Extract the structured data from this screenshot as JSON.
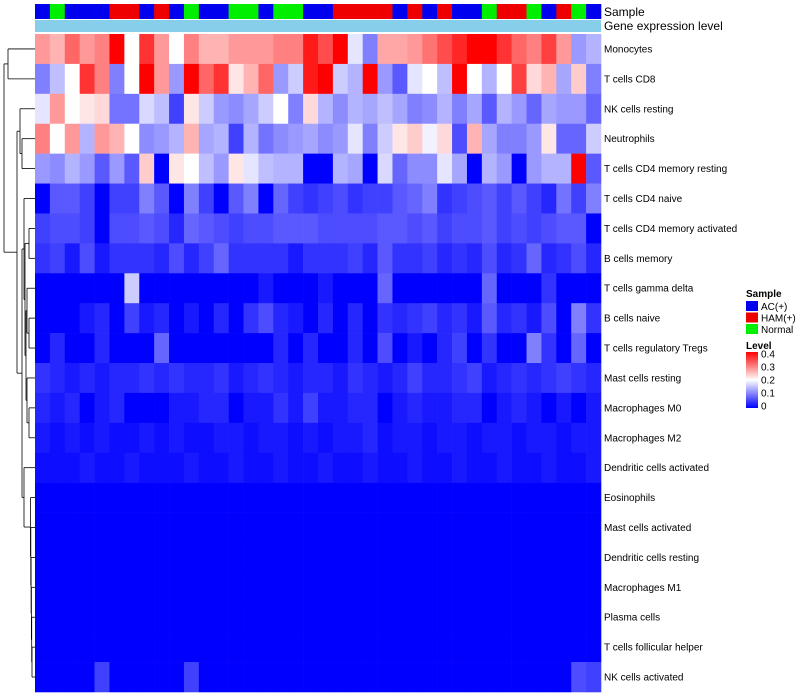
{
  "chart_data": {
    "type": "heatmap",
    "title": "",
    "annotation_labels": {
      "sample": "Sample",
      "expression": "Gene expression level"
    },
    "legend": {
      "sample_title": "Sample",
      "sample_categories": [
        {
          "name": "AC(+)",
          "color": "#0000EE"
        },
        {
          "name": "HAM(+)",
          "color": "#EE0000"
        },
        {
          "name": "Normal",
          "color": "#00EE00"
        }
      ],
      "level_title": "Level",
      "level_ticks": [
        "0.4",
        "0.3",
        "0.2",
        "0.1",
        "0"
      ],
      "level_range": [
        0,
        0.4
      ]
    },
    "sample_groups": [
      "AC(+)",
      "Normal",
      "AC(+)",
      "AC(+)",
      "AC(+)",
      "HAM(+)",
      "HAM(+)",
      "AC(+)",
      "HAM(+)",
      "AC(+)",
      "Normal",
      "AC(+)",
      "AC(+)",
      "Normal",
      "Normal",
      "AC(+)",
      "Normal",
      "Normal",
      "AC(+)",
      "AC(+)",
      "HAM(+)",
      "HAM(+)",
      "HAM(+)",
      "HAM(+)",
      "AC(+)",
      "HAM(+)",
      "AC(+)",
      "HAM(+)",
      "AC(+)",
      "AC(+)",
      "Normal",
      "HAM(+)",
      "HAM(+)",
      "Normal",
      "AC(+)",
      "HAM(+)",
      "Normal",
      "AC(+)"
    ],
    "rows": [
      "Monocytes",
      "T cells CD8",
      "NK cells resting",
      "Neutrophils",
      "T cells CD4 memory resting",
      "T cells CD4 naive",
      "T cells CD4 memory activated",
      "B cells memory",
      "T cells gamma delta",
      "B cells naive",
      "T cells regulatory  Tregs",
      "Mast cells resting",
      "Macrophages M0",
      "Macrophages M2",
      "Dendritic cells activated",
      "Eosinophils",
      "Mast cells activated",
      "Dendritic cells resting",
      "Macrophages M1",
      "Plasma cells",
      "T cells follicular helper",
      "NK cells activated"
    ],
    "values": [
      [
        0.28,
        0.26,
        0.32,
        0.28,
        0.3,
        0.4,
        0.2,
        0.36,
        0.28,
        0.2,
        0.3,
        0.26,
        0.26,
        0.28,
        0.28,
        0.28,
        0.3,
        0.3,
        0.38,
        0.34,
        0.4,
        0.18,
        0.1,
        0.27,
        0.27,
        0.28,
        0.31,
        0.34,
        0.37,
        0.42,
        0.42,
        0.36,
        0.32,
        0.3,
        0.35,
        0.28,
        0.12,
        0.14
      ],
      [
        0.1,
        0.15,
        0.2,
        0.36,
        0.3,
        0.1,
        0.2,
        0.4,
        0.28,
        0.12,
        0.4,
        0.32,
        0.36,
        0.22,
        0.26,
        0.32,
        0.12,
        0.16,
        0.38,
        0.4,
        0.16,
        0.14,
        0.4,
        0.12,
        0.07,
        0.18,
        0.2,
        0.15,
        0.4,
        0.2,
        0.14,
        0.2,
        0.35,
        0.23,
        0.26,
        0.13,
        0.24,
        0.1
      ],
      [
        0.18,
        0.28,
        0.2,
        0.22,
        0.23,
        0.09,
        0.09,
        0.17,
        0.15,
        0.05,
        0.22,
        0.16,
        0.12,
        0.11,
        0.13,
        0.16,
        0.2,
        0.1,
        0.23,
        0.14,
        0.11,
        0.14,
        0.13,
        0.15,
        0.13,
        0.1,
        0.11,
        0.14,
        0.1,
        0.13,
        0.07,
        0.14,
        0.12,
        0.08,
        0.13,
        0.12,
        0.12,
        0.08
      ],
      [
        0.3,
        0.2,
        0.28,
        0.14,
        0.28,
        0.26,
        0.2,
        0.11,
        0.12,
        0.14,
        0.26,
        0.13,
        0.14,
        0.05,
        0.14,
        0.09,
        0.11,
        0.12,
        0.13,
        0.11,
        0.12,
        0.18,
        0.1,
        0.16,
        0.22,
        0.24,
        0.19,
        0.23,
        0.06,
        0.26,
        0.13,
        0.1,
        0.1,
        0.12,
        0.22,
        0.08,
        0.08,
        0.16
      ],
      [
        0.12,
        0.11,
        0.14,
        0.12,
        0.07,
        0.12,
        0.07,
        0.24,
        0.0,
        0.22,
        0.2,
        0.15,
        0.12,
        0.22,
        0.18,
        0.15,
        0.14,
        0.14,
        0.0,
        0.0,
        0.14,
        0.13,
        0.0,
        0.17,
        0.08,
        0.11,
        0.11,
        0.18,
        0.13,
        0.0,
        0.14,
        0.12,
        0.0,
        0.12,
        0.14,
        0.14,
        0.4,
        0.07
      ],
      [
        0.0,
        0.07,
        0.07,
        0.05,
        0.0,
        0.05,
        0.05,
        0.1,
        0.07,
        0.0,
        0.1,
        0.05,
        0.0,
        0.07,
        0.1,
        0.0,
        0.08,
        0.05,
        0.04,
        0.05,
        0.06,
        0.04,
        0.05,
        0.05,
        0.07,
        0.08,
        0.1,
        0.04,
        0.05,
        0.06,
        0.07,
        0.05,
        0.07,
        0.05,
        0.03,
        0.09,
        0.05,
        0.1
      ],
      [
        0.05,
        0.06,
        0.06,
        0.05,
        0.0,
        0.06,
        0.06,
        0.07,
        0.06,
        0.03,
        0.08,
        0.07,
        0.06,
        0.05,
        0.06,
        0.06,
        0.07,
        0.07,
        0.07,
        0.06,
        0.06,
        0.06,
        0.06,
        0.07,
        0.07,
        0.06,
        0.07,
        0.05,
        0.06,
        0.06,
        0.07,
        0.05,
        0.06,
        0.05,
        0.06,
        0.07,
        0.07,
        0.0
      ],
      [
        0.04,
        0.05,
        0.02,
        0.06,
        0.02,
        0.04,
        0.04,
        0.04,
        0.03,
        0.06,
        0.03,
        0.05,
        0.08,
        0.04,
        0.04,
        0.04,
        0.04,
        0.02,
        0.04,
        0.04,
        0.04,
        0.05,
        0.03,
        0.07,
        0.04,
        0.04,
        0.05,
        0.03,
        0.04,
        0.03,
        0.06,
        0.03,
        0.04,
        0.08,
        0.03,
        0.04,
        0.06,
        0.03
      ],
      [
        0.0,
        0.0,
        0.0,
        0.0,
        0.0,
        0.0,
        0.16,
        0.0,
        0.0,
        0.0,
        0.0,
        0.0,
        0.0,
        0.0,
        0.0,
        0.02,
        0.0,
        0.0,
        0.0,
        0.02,
        0.0,
        0.0,
        0.0,
        0.08,
        0.0,
        0.0,
        0.0,
        0.0,
        0.0,
        0.0,
        0.08,
        0.0,
        0.0,
        0.0,
        0.04,
        0.0,
        0.0,
        0.0
      ],
      [
        0.0,
        0.0,
        0.0,
        0.02,
        0.03,
        0.0,
        0.05,
        0.02,
        0.03,
        0.0,
        0.02,
        0.0,
        0.03,
        0.0,
        0.04,
        0.06,
        0.03,
        0.02,
        0.0,
        0.03,
        0.0,
        0.03,
        0.0,
        0.04,
        0.03,
        0.04,
        0.05,
        0.03,
        0.04,
        0.02,
        0.07,
        0.03,
        0.04,
        0.02,
        0.06,
        0.0,
        0.1,
        0.04
      ],
      [
        0.0,
        0.03,
        0.0,
        0.0,
        0.03,
        0.0,
        0.0,
        0.0,
        0.08,
        0.0,
        0.0,
        0.0,
        0.0,
        0.0,
        0.0,
        0.0,
        0.03,
        0.0,
        0.03,
        0.0,
        0.0,
        0.03,
        0.0,
        0.06,
        0.0,
        0.02,
        0.0,
        0.03,
        0.05,
        0.0,
        0.04,
        0.0,
        0.0,
        0.1,
        0.04,
        0.0,
        0.08,
        0.0
      ],
      [
        0.04,
        0.03,
        0.02,
        0.03,
        0.02,
        0.03,
        0.03,
        0.04,
        0.03,
        0.04,
        0.03,
        0.03,
        0.04,
        0.02,
        0.03,
        0.04,
        0.03,
        0.02,
        0.03,
        0.03,
        0.02,
        0.04,
        0.03,
        0.02,
        0.03,
        0.05,
        0.03,
        0.03,
        0.04,
        0.05,
        0.02,
        0.03,
        0.04,
        0.03,
        0.04,
        0.05,
        0.04,
        0.03
      ],
      [
        0.03,
        0.02,
        0.03,
        0.0,
        0.02,
        0.03,
        0.0,
        0.0,
        0.0,
        0.02,
        0.02,
        0.03,
        0.03,
        0.0,
        0.02,
        0.02,
        0.04,
        0.02,
        0.05,
        0.02,
        0.02,
        0.03,
        0.03,
        0.0,
        0.02,
        0.03,
        0.02,
        0.02,
        0.03,
        0.03,
        0.0,
        0.02,
        0.03,
        0.02,
        0.0,
        0.02,
        0.0,
        0.02
      ],
      [
        0.02,
        0.01,
        0.02,
        0.01,
        0.02,
        0.01,
        0.01,
        0.02,
        0.01,
        0.02,
        0.01,
        0.01,
        0.02,
        0.02,
        0.01,
        0.02,
        0.02,
        0.01,
        0.02,
        0.01,
        0.02,
        0.02,
        0.03,
        0.01,
        0.02,
        0.02,
        0.01,
        0.02,
        0.02,
        0.01,
        0.02,
        0.02,
        0.01,
        0.02,
        0.02,
        0.01,
        0.02,
        0.02
      ],
      [
        0.01,
        0.01,
        0.01,
        0.02,
        0.01,
        0.01,
        0.02,
        0.01,
        0.01,
        0.01,
        0.02,
        0.01,
        0.01,
        0.02,
        0.01,
        0.01,
        0.02,
        0.01,
        0.01,
        0.02,
        0.01,
        0.01,
        0.02,
        0.01,
        0.01,
        0.02,
        0.01,
        0.01,
        0.02,
        0.01,
        0.01,
        0.02,
        0.01,
        0.01,
        0.02,
        0.01,
        0.01,
        0.02
      ],
      [
        0.0,
        0.0,
        0.0,
        0.0,
        0.0,
        0.0,
        0.0,
        0.0,
        0.0,
        0.0,
        0.0,
        0.0,
        0.0,
        0.0,
        0.0,
        0.0,
        0.0,
        0.0,
        0.0,
        0.0,
        0.0,
        0.0,
        0.0,
        0.0,
        0.0,
        0.0,
        0.0,
        0.0,
        0.0,
        0.0,
        0.0,
        0.0,
        0.0,
        0.0,
        0.0,
        0.0,
        0.0,
        0.0
      ],
      [
        0.0,
        0.0,
        0.0,
        0.0,
        0.0,
        0.0,
        0.0,
        0.0,
        0.0,
        0.0,
        0.0,
        0.0,
        0.0,
        0.0,
        0.0,
        0.0,
        0.0,
        0.0,
        0.0,
        0.0,
        0.0,
        0.0,
        0.0,
        0.0,
        0.0,
        0.0,
        0.0,
        0.0,
        0.0,
        0.0,
        0.0,
        0.0,
        0.0,
        0.0,
        0.0,
        0.0,
        0.0,
        0.0
      ],
      [
        0.0,
        0.0,
        0.0,
        0.0,
        0.0,
        0.0,
        0.0,
        0.0,
        0.0,
        0.0,
        0.0,
        0.0,
        0.0,
        0.0,
        0.0,
        0.0,
        0.0,
        0.0,
        0.0,
        0.0,
        0.0,
        0.0,
        0.0,
        0.0,
        0.0,
        0.0,
        0.0,
        0.0,
        0.0,
        0.0,
        0.0,
        0.0,
        0.0,
        0.0,
        0.0,
        0.0,
        0.0,
        0.0
      ],
      [
        0.0,
        0.0,
        0.0,
        0.0,
        0.0,
        0.0,
        0.0,
        0.0,
        0.0,
        0.0,
        0.0,
        0.0,
        0.0,
        0.0,
        0.0,
        0.0,
        0.0,
        0.0,
        0.0,
        0.0,
        0.0,
        0.0,
        0.0,
        0.0,
        0.0,
        0.0,
        0.0,
        0.0,
        0.0,
        0.0,
        0.0,
        0.0,
        0.0,
        0.0,
        0.0,
        0.0,
        0.0,
        0.0
      ],
      [
        0.0,
        0.0,
        0.0,
        0.0,
        0.0,
        0.0,
        0.0,
        0.0,
        0.0,
        0.0,
        0.0,
        0.0,
        0.0,
        0.0,
        0.0,
        0.0,
        0.0,
        0.0,
        0.0,
        0.0,
        0.0,
        0.0,
        0.0,
        0.0,
        0.0,
        0.0,
        0.0,
        0.0,
        0.0,
        0.0,
        0.0,
        0.0,
        0.0,
        0.0,
        0.0,
        0.0,
        0.0,
        0.0
      ],
      [
        0.0,
        0.0,
        0.0,
        0.0,
        0.0,
        0.0,
        0.0,
        0.0,
        0.0,
        0.0,
        0.0,
        0.0,
        0.0,
        0.0,
        0.0,
        0.0,
        0.0,
        0.0,
        0.0,
        0.0,
        0.0,
        0.0,
        0.0,
        0.0,
        0.0,
        0.0,
        0.0,
        0.0,
        0.0,
        0.0,
        0.0,
        0.0,
        0.0,
        0.0,
        0.0,
        0.0,
        0.0,
        0.0
      ],
      [
        0.0,
        0.0,
        0.0,
        0.0,
        0.05,
        0.0,
        0.0,
        0.0,
        0.0,
        0.0,
        0.05,
        0.0,
        0.0,
        0.0,
        0.0,
        0.0,
        0.0,
        0.0,
        0.0,
        0.0,
        0.0,
        0.0,
        0.0,
        0.0,
        0.0,
        0.0,
        0.0,
        0.0,
        0.0,
        0.0,
        0.0,
        0.0,
        0.0,
        0.0,
        0.0,
        0.0,
        0.06,
        0.05
      ]
    ]
  }
}
